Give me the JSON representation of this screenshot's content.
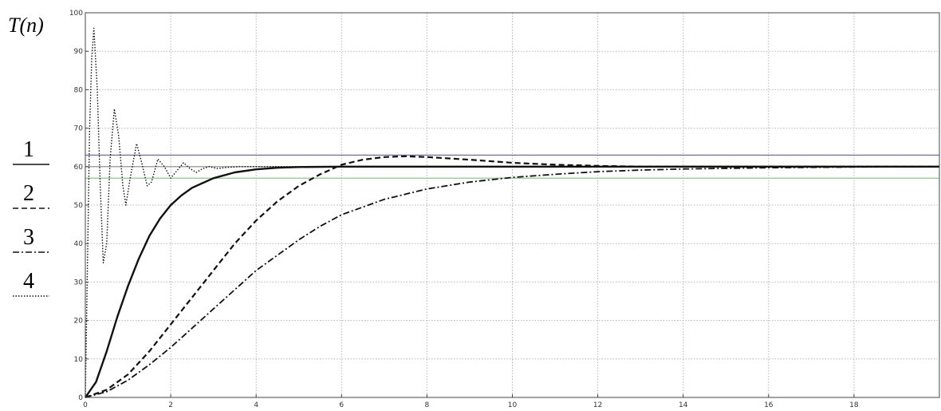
{
  "chart_data": {
    "type": "line",
    "title": "",
    "xlabel": "",
    "ylabel": "T(n)",
    "xlim": [
      0,
      20
    ],
    "ylim": [
      0,
      100
    ],
    "grid": true,
    "legend_placement": "left",
    "xticks": [
      0,
      2,
      4,
      6,
      8,
      10,
      12,
      14,
      16,
      18
    ],
    "yticks": [
      0,
      10,
      20,
      30,
      40,
      50,
      60,
      70,
      80,
      90,
      100
    ],
    "reference_lines": [
      {
        "y": 63,
        "color": "#6a6fb0"
      },
      {
        "y": 60,
        "color": "#8a8a8a"
      },
      {
        "y": 57,
        "color": "#8fc58a"
      }
    ],
    "series": [
      {
        "name": "1",
        "style": "solid",
        "x": [
          0,
          0.25,
          0.5,
          0.75,
          1,
          1.25,
          1.5,
          1.75,
          2,
          2.25,
          2.5,
          3,
          3.5,
          4,
          4.5,
          5,
          6,
          8,
          10,
          12,
          14,
          16,
          18,
          20
        ],
        "y": [
          0,
          4,
          12,
          21,
          29,
          36,
          42,
          46.5,
          50,
          52.5,
          54.5,
          57,
          58.5,
          59.3,
          59.7,
          59.9,
          60,
          60,
          60,
          60,
          60,
          60,
          60,
          60
        ]
      },
      {
        "name": "2",
        "style": "dashed",
        "x": [
          0,
          0.5,
          1,
          1.5,
          2,
          2.5,
          3,
          3.5,
          4,
          4.5,
          5,
          5.5,
          6,
          6.5,
          7,
          7.5,
          8,
          9,
          10,
          11,
          12,
          13,
          14,
          16,
          18,
          20
        ],
        "y": [
          0,
          2,
          6,
          12,
          19,
          26,
          33,
          40,
          46,
          51,
          55,
          58,
          60.5,
          61.8,
          62.5,
          62.7,
          62.5,
          61.8,
          61,
          60.5,
          60.2,
          60,
          60,
          60,
          60,
          60
        ]
      },
      {
        "name": "3",
        "style": "dashdot",
        "x": [
          0,
          0.5,
          1,
          1.5,
          2,
          2.5,
          3,
          3.5,
          4,
          4.5,
          5,
          5.5,
          6,
          7,
          8,
          9,
          10,
          11,
          12,
          13,
          14,
          16,
          18,
          20
        ],
        "y": [
          0,
          1.5,
          4.5,
          8.5,
          13,
          18,
          23,
          28,
          33,
          37,
          41,
          44.5,
          47.5,
          51.5,
          54.2,
          56,
          57.2,
          58,
          58.7,
          59.1,
          59.4,
          59.7,
          59.9,
          60
        ]
      },
      {
        "name": "4",
        "style": "dotted",
        "x": [
          0,
          0.05,
          0.1,
          0.15,
          0.2,
          0.28,
          0.35,
          0.42,
          0.5,
          0.58,
          0.68,
          0.78,
          0.88,
          0.95,
          1.05,
          1.2,
          1.32,
          1.45,
          1.55,
          1.7,
          1.85,
          2.0,
          2.15,
          2.3,
          2.45,
          2.6,
          2.75,
          2.9,
          3.1,
          3.3,
          3.6,
          4,
          5,
          6,
          8,
          10,
          12,
          14,
          16,
          18,
          20
        ],
        "y": [
          0,
          35,
          70,
          88,
          96,
          80,
          55,
          35,
          40,
          62,
          75,
          68,
          55,
          50,
          57,
          66,
          61,
          55,
          56,
          62,
          60,
          57,
          59,
          61,
          59.5,
          58.5,
          59.5,
          60,
          59.5,
          59.8,
          60,
          60,
          60,
          60,
          60,
          60,
          60,
          60,
          60,
          60,
          60
        ]
      }
    ]
  }
}
